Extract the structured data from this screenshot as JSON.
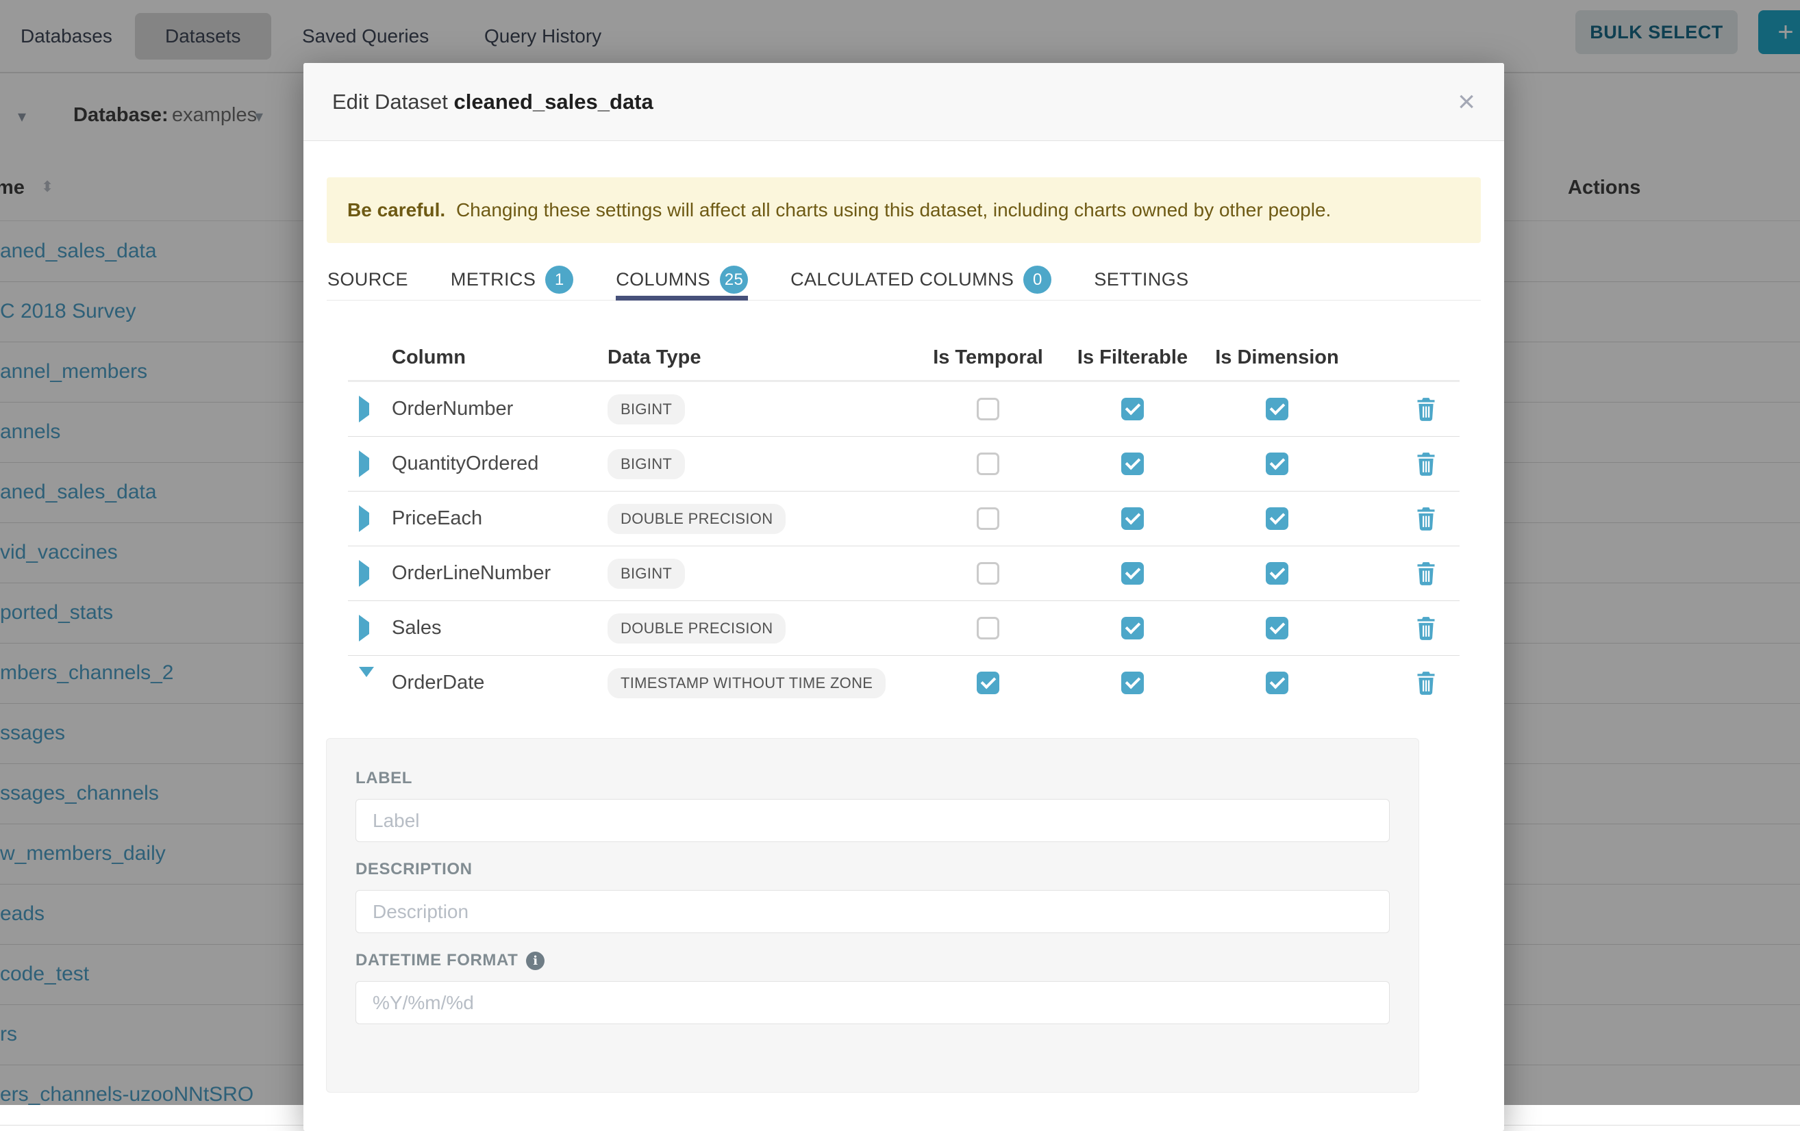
{
  "nav": {
    "items": [
      {
        "label": "Databases",
        "active": false
      },
      {
        "label": "Datasets",
        "active": true
      },
      {
        "label": "Saved Queries",
        "active": false
      },
      {
        "label": "Query History",
        "active": false
      }
    ],
    "bulk_select_label": "BULK SELECT",
    "add_label": "+"
  },
  "background": {
    "filter_bar": {
      "database_label": "Database:",
      "database_value": "examples",
      "caret": "▾",
      "sort_icon": "⬍"
    },
    "table": {
      "name_header": "me",
      "actions_header": "Actions",
      "rows": [
        "aned_sales_data",
        "C 2018 Survey",
        "annel_members",
        "annels",
        "aned_sales_data",
        "vid_vaccines",
        "ported_stats",
        "mbers_channels_2",
        "ssages",
        "ssages_channels",
        "w_members_daily",
        "eads",
        "code_test",
        "rs",
        "ers_channels-uzooNNtSRO"
      ]
    }
  },
  "modal": {
    "title_prefix": "Edit Dataset",
    "title_name": "cleaned_sales_data",
    "close_glyph": "×",
    "warning": {
      "bold": "Be careful.",
      "text": "Changing these settings will affect all charts using this dataset, including charts owned by other people."
    },
    "tabs": [
      {
        "label": "SOURCE",
        "badge": null,
        "active": false
      },
      {
        "label": "METRICS",
        "badge": "1",
        "active": false
      },
      {
        "label": "COLUMNS",
        "badge": "25",
        "active": true
      },
      {
        "label": "CALCULATED COLUMNS",
        "badge": "0",
        "active": false
      },
      {
        "label": "SETTINGS",
        "badge": null,
        "active": false
      }
    ],
    "columns_table": {
      "headers": [
        "Column",
        "Data Type",
        "Is Temporal",
        "Is Filterable",
        "Is Dimension"
      ],
      "rows": [
        {
          "name": "OrderNumber",
          "type": "BIGINT",
          "temporal": false,
          "filterable": true,
          "dimension": true,
          "expanded": false
        },
        {
          "name": "QuantityOrdered",
          "type": "BIGINT",
          "temporal": false,
          "filterable": true,
          "dimension": true,
          "expanded": false
        },
        {
          "name": "PriceEach",
          "type": "DOUBLE PRECISION",
          "temporal": false,
          "filterable": true,
          "dimension": true,
          "expanded": false
        },
        {
          "name": "OrderLineNumber",
          "type": "BIGINT",
          "temporal": false,
          "filterable": true,
          "dimension": true,
          "expanded": false
        },
        {
          "name": "Sales",
          "type": "DOUBLE PRECISION",
          "temporal": false,
          "filterable": true,
          "dimension": true,
          "expanded": false
        },
        {
          "name": "OrderDate",
          "type": "TIMESTAMP WITHOUT TIME ZONE",
          "temporal": true,
          "filterable": true,
          "dimension": true,
          "expanded": true
        }
      ]
    },
    "detail_form": {
      "label_label": "LABEL",
      "label_placeholder": "Label",
      "description_label": "DESCRIPTION",
      "description_placeholder": "Description",
      "datetime_label": "DATETIME FORMAT",
      "datetime_placeholder": "%Y/%m/%d",
      "info_glyph": "i"
    }
  },
  "colors": {
    "accent": "#4da7c9",
    "tab_underline": "#47517a",
    "warning_bg": "#fbf6dc",
    "warning_text": "#6e5a14",
    "bg_link": "#4da0c9",
    "primary_button": "#20a7c9"
  }
}
